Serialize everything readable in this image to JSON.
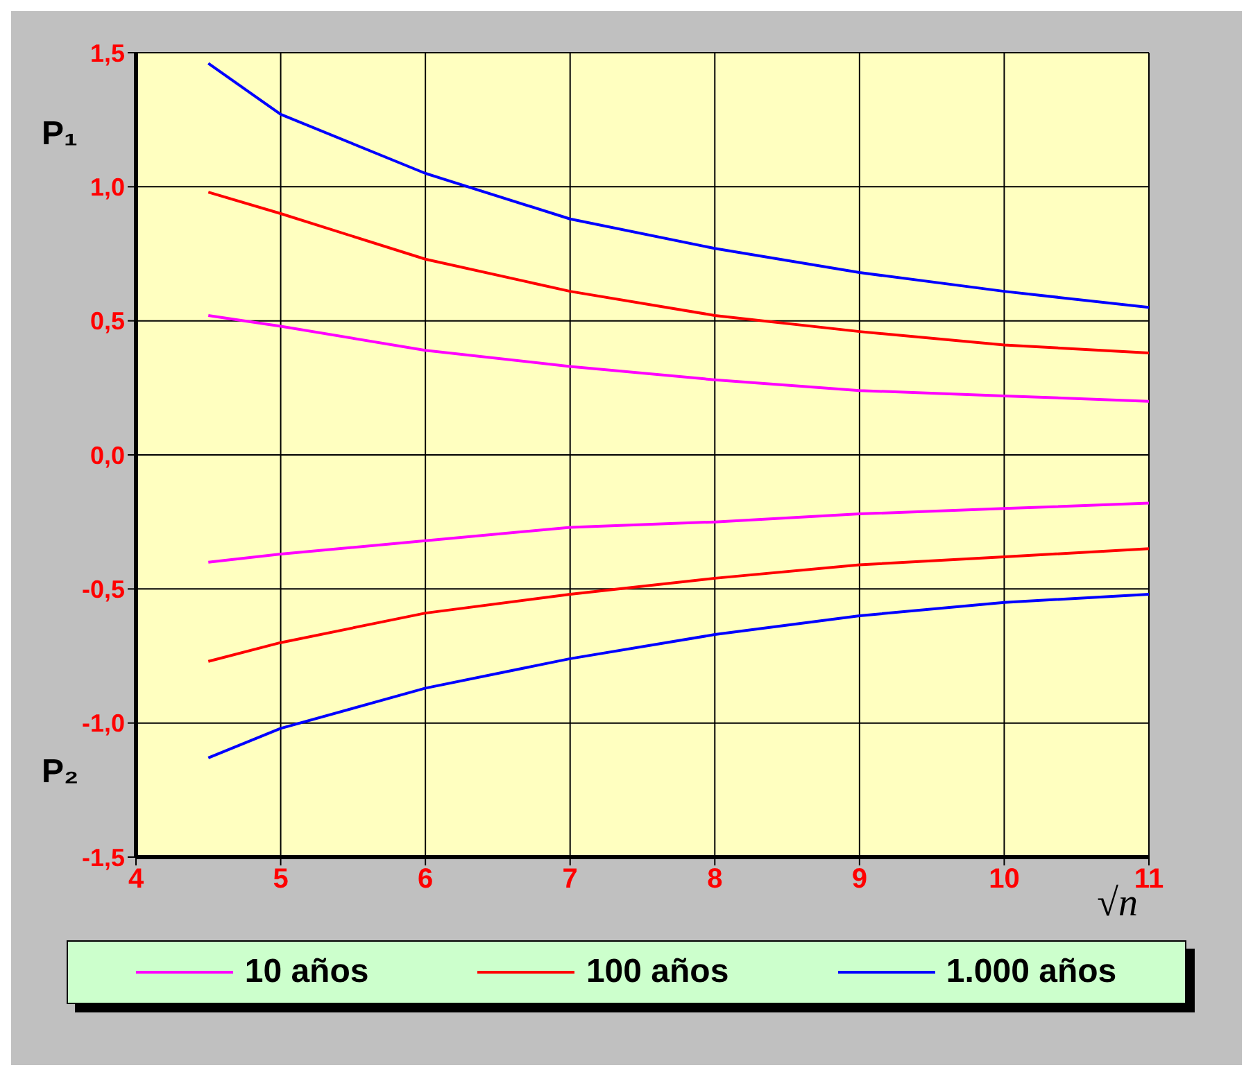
{
  "chart_data": {
    "type": "line",
    "xlabel": "√n",
    "annotations": [
      "P₁",
      "P₂"
    ],
    "x": [
      4.5,
      5,
      6,
      7,
      8,
      9,
      10,
      11
    ],
    "series": [
      {
        "name": "10 años",
        "color": "#ff00ff",
        "values": [
          0.52,
          0.48,
          0.39,
          0.33,
          0.28,
          0.24,
          0.22,
          0.2
        ]
      },
      {
        "name": "100 años",
        "color": "#ff0000",
        "values": [
          0.98,
          0.9,
          0.73,
          0.61,
          0.52,
          0.46,
          0.41,
          0.38
        ]
      },
      {
        "name": "1.000 años",
        "color": "#0000ff",
        "values": [
          1.46,
          1.27,
          1.05,
          0.88,
          0.77,
          0.68,
          0.61,
          0.55
        ]
      },
      {
        "color": "#ff00ff",
        "values": [
          -0.4,
          -0.37,
          -0.32,
          -0.27,
          -0.25,
          -0.22,
          -0.2,
          -0.18
        ]
      },
      {
        "color": "#ff0000",
        "values": [
          -0.77,
          -0.7,
          -0.59,
          -0.52,
          -0.46,
          -0.41,
          -0.38,
          -0.35
        ]
      },
      {
        "color": "#0000ff",
        "values": [
          -1.13,
          -1.02,
          -0.87,
          -0.76,
          -0.67,
          -0.6,
          -0.55,
          -0.52
        ]
      }
    ],
    "xlim": [
      4,
      11
    ],
    "xticks": [
      4,
      5,
      6,
      7,
      8,
      9,
      10,
      11
    ],
    "ylim": [
      -1.5,
      1.5
    ],
    "yticks": [
      {
        "value": -1.5,
        "label": "-1,5"
      },
      {
        "value": -1,
        "label": "-1,0"
      },
      {
        "value": -0.5,
        "label": "-0,5"
      },
      {
        "value": 0,
        "label": "0,0"
      },
      {
        "value": 0.5,
        "label": "0,5"
      },
      {
        "value": 1,
        "label": "1,0"
      },
      {
        "value": 1.5,
        "label": "1,5"
      }
    ],
    "grid": true,
    "legend": "bottom",
    "marker": "none"
  }
}
